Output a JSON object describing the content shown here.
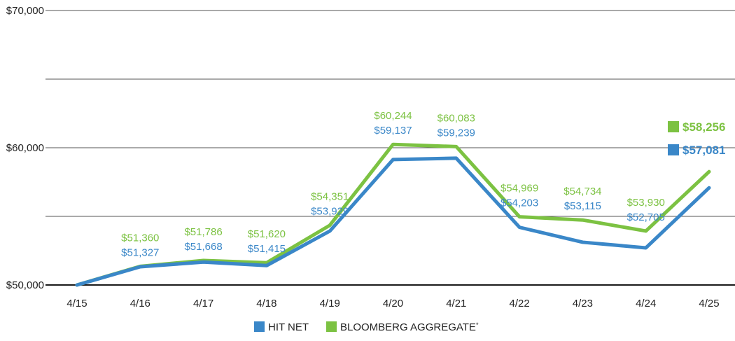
{
  "chart_data": {
    "type": "line",
    "title": "",
    "xlabel": "",
    "ylabel": "",
    "categories": [
      "4/15",
      "4/16",
      "4/17",
      "4/18",
      "4/19",
      "4/20",
      "4/21",
      "4/22",
      "4/23",
      "4/24",
      "4/25"
    ],
    "ylim": [
      50000,
      70000
    ],
    "yticks": [
      {
        "value": 70000,
        "label": "$70,000"
      },
      {
        "value": 60000,
        "label": "$60,000"
      },
      {
        "value": 50000,
        "label": "$50,000"
      }
    ],
    "gridlines": [
      70000,
      65000,
      60000,
      55000,
      50000
    ],
    "grid": true,
    "legend_position": "bottom-center",
    "series": [
      {
        "name": "HIT NET",
        "color": "#3a87c8",
        "values": [
          50000,
          51327,
          51668,
          51415,
          53929,
          59137,
          59239,
          54203,
          53115,
          52705,
          57081
        ],
        "labels": [
          "",
          "$51,327",
          "$51,668",
          "$51,415",
          "$53,929",
          "$59,137",
          "$59,239",
          "$54,203",
          "$53,115",
          "$52,705",
          ""
        ],
        "end_label": "$57,081"
      },
      {
        "name": "BLOOMBERG AGGREGATE*",
        "color": "#7cc242",
        "values": [
          50000,
          51360,
          51786,
          51620,
          54351,
          60244,
          60083,
          54969,
          54734,
          53930,
          58256
        ],
        "labels": [
          "",
          "$51,360",
          "$51,786",
          "$51,620",
          "$54,351",
          "$60,244",
          "$60,083",
          "$54,969",
          "$54,734",
          "$53,930",
          ""
        ],
        "end_label": "$58,256"
      }
    ]
  }
}
